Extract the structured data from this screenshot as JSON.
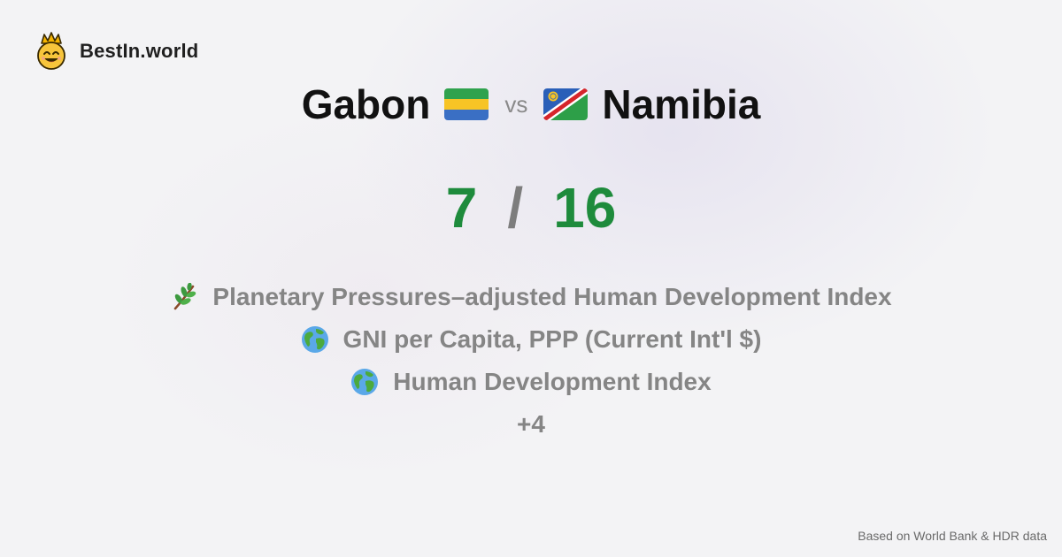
{
  "brand": {
    "name": "BestIn.world",
    "logo_icon": "crowned-smiley-icon"
  },
  "comparison": {
    "left": {
      "name": "Gabon",
      "flag_icon": "gabon-flag-icon"
    },
    "vs_label": "vs",
    "right": {
      "name": "Namibia",
      "flag_icon": "namibia-flag-icon"
    }
  },
  "score": {
    "left": "7",
    "separator": "/",
    "right": "16"
  },
  "metrics": [
    {
      "icon": "plant-icon",
      "label": "Planetary Pressures–adjusted Human Development Index"
    },
    {
      "icon": "globe-icon",
      "label": "GNI per Capita, PPP (Current Int'l $)"
    },
    {
      "icon": "globe-icon",
      "label": "Human Development Index"
    }
  ],
  "more_label": "+4",
  "footer": {
    "source": "Based on World Bank & HDR data"
  },
  "colors": {
    "score": "#1e8b3c",
    "muted": "#858585",
    "heading": "#111111"
  }
}
